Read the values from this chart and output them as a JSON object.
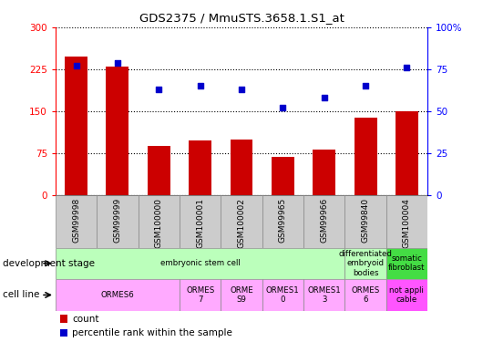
{
  "title": "GDS2375 / MmuSTS.3658.1.S1_at",
  "samples": [
    "GSM99998",
    "GSM99999",
    "GSM100000",
    "GSM100001",
    "GSM100002",
    "GSM99965",
    "GSM99966",
    "GSM99840",
    "GSM100004"
  ],
  "counts": [
    248,
    230,
    88,
    98,
    100,
    68,
    82,
    138,
    150
  ],
  "percentiles": [
    77,
    79,
    63,
    65,
    63,
    52,
    58,
    65,
    76
  ],
  "ylim_left": [
    0,
    300
  ],
  "ylim_right": [
    0,
    100
  ],
  "yticks_left": [
    0,
    75,
    150,
    225,
    300
  ],
  "yticks_right": [
    0,
    25,
    50,
    75,
    100
  ],
  "ytick_labels_left": [
    "0",
    "75",
    "150",
    "225",
    "300"
  ],
  "ytick_labels_right": [
    "0",
    "25",
    "50",
    "75",
    "100%"
  ],
  "bar_color": "#cc0000",
  "dot_color": "#0000cc",
  "bg_color": "#ffffff",
  "plot_bg": "#ffffff",
  "dev_stage_groups": [
    {
      "label": "embryonic stem cell",
      "start": 0,
      "end": 7,
      "color": "#bbffbb"
    },
    {
      "label": "differentiated\nembryoid\nbodies",
      "start": 7,
      "end": 8,
      "color": "#bbffbb"
    },
    {
      "label": "somatic\nfibroblast",
      "start": 8,
      "end": 9,
      "color": "#44dd44"
    }
  ],
  "cell_line_groups": [
    {
      "label": "ORMES6",
      "start": 0,
      "end": 3,
      "color": "#ffaaff"
    },
    {
      "label": "ORMES\n7",
      "start": 3,
      "end": 4,
      "color": "#ffaaff"
    },
    {
      "label": "ORME\nS9",
      "start": 4,
      "end": 5,
      "color": "#ffaaff"
    },
    {
      "label": "ORMES1\n0",
      "start": 5,
      "end": 6,
      "color": "#ffaaff"
    },
    {
      "label": "ORMES1\n3",
      "start": 6,
      "end": 7,
      "color": "#ffaaff"
    },
    {
      "label": "ORMES\n6",
      "start": 7,
      "end": 8,
      "color": "#ffaaff"
    },
    {
      "label": "not appli\ncable",
      "start": 8,
      "end": 9,
      "color": "#ff55ff"
    }
  ],
  "legend_count_label": "count",
  "legend_pct_label": "percentile rank within the sample",
  "dev_stage_label": "development stage",
  "cell_line_label": "cell line",
  "tick_bg_color": "#cccccc",
  "tick_border_color": "#888888",
  "fig_width": 5.3,
  "fig_height": 3.75,
  "dpi": 100
}
